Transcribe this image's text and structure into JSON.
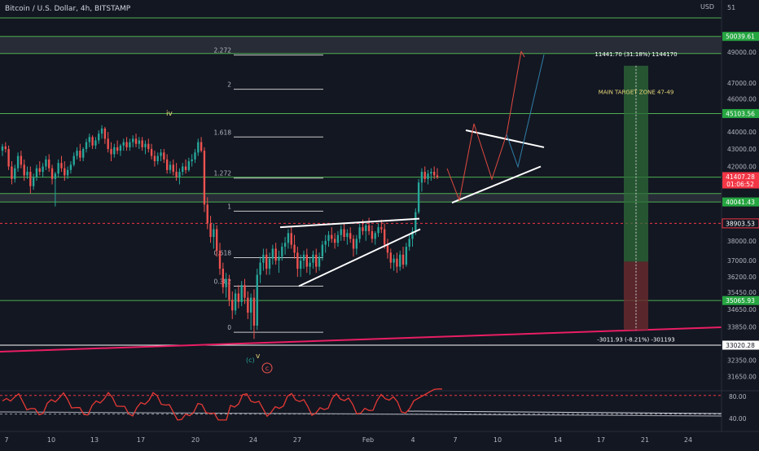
{
  "symbol": {
    "title": "Bitcoin / U.S. Dollar, 4h, BITSTAMP",
    "currency": "USD",
    "price_ticker_top": "51"
  },
  "colors": {
    "background": "#131722",
    "up": "#26a69a",
    "down": "#ef5350",
    "level_line": "#4caf50",
    "target_zone_top": "#2e6b38",
    "target_zone_bottom": "#6b2a2e",
    "trendline": "#e91e63",
    "wedge": "#ffffff",
    "projection_up": "#e04a3f",
    "projection_alt": "#2f7fa8",
    "rsi": "#e53935",
    "neutral_text": "#b2b5be"
  },
  "chart_data": {
    "type": "candlestick",
    "title": "Bitcoin / U.S. Dollar, 4h, BITSTAMP",
    "y_axis": {
      "scale": "log",
      "range": [
        31100,
        52500
      ],
      "ticks": [
        31650,
        32350,
        33020.28,
        33850,
        34650,
        35450,
        36200,
        37000,
        38000,
        39000,
        40000,
        41000,
        42000,
        43000,
        44000,
        45000,
        46000,
        47000,
        49000
      ]
    },
    "x_axis": {
      "ticks": [
        "7",
        "10",
        "13",
        "17",
        "20",
        "24",
        "27",
        "Feb",
        "4",
        "7",
        "10",
        "14",
        "17",
        "21",
        "24"
      ]
    },
    "price_tags": [
      {
        "price": "50039.61",
        "style": "green"
      },
      {
        "price": "45103.56",
        "style": "green"
      },
      {
        "price": "41407.28",
        "countdown": "01:06:52",
        "style": "red"
      },
      {
        "price": "40041.43",
        "style": "green"
      },
      {
        "price": "38903.53",
        "style": "red-outline"
      },
      {
        "price": "35065.93",
        "style": "green"
      },
      {
        "price": "33020.28",
        "style": "white"
      }
    ],
    "horizontal_levels": [
      51300,
      50039.61,
      48900,
      45103.56,
      41400,
      40500,
      40041.43,
      35065.93
    ],
    "zones": [
      {
        "from": 48900,
        "to": 50039.61
      },
      {
        "from": 40041.43,
        "to": 40500
      }
    ],
    "fibonacci": {
      "levels": [
        {
          "label": "2.272",
          "price": 48800
        },
        {
          "label": "2",
          "price": 46600
        },
        {
          "label": "1.618",
          "price": 43700
        },
        {
          "label": "1.272",
          "price": 41350
        },
        {
          "label": "1",
          "price": 39550
        },
        {
          "label": "0.618",
          "price": 37150
        },
        {
          "label": "0.382",
          "price": 35750
        },
        {
          "label": "0",
          "price": 33600
        }
      ]
    },
    "wave_labels": [
      {
        "text": "iv",
        "style": "plain"
      },
      {
        "text": "v",
        "style": "plain"
      },
      {
        "text": "(c)",
        "style": "paren"
      },
      {
        "text": "c",
        "style": "circled"
      }
    ],
    "target_box": {
      "entry": 36950,
      "target": 48100,
      "stop": 33700,
      "top_label": "11441.70 (31.18%) 1144170",
      "bottom_label": "-3011.93 (-8.21%) -301193",
      "zone_label": "MAIN TARGET ZONE 47-49"
    },
    "rsi": {
      "levels": [
        80,
        70,
        40
      ],
      "tick_labels": [
        "80.00",
        "40.00"
      ]
    },
    "candles": [
      [
        42900,
        43300,
        42600,
        43150
      ],
      [
        43150,
        43400,
        42800,
        43000
      ],
      [
        43000,
        43200,
        41800,
        42000
      ],
      [
        42000,
        42300,
        41000,
        41300
      ],
      [
        41300,
        42100,
        41100,
        41900
      ],
      [
        41900,
        42800,
        41700,
        42600
      ],
      [
        42600,
        42900,
        41900,
        42100
      ],
      [
        42100,
        42400,
        41200,
        41500
      ],
      [
        41500,
        42000,
        41300,
        41700
      ],
      [
        41700,
        42000,
        40500,
        40900
      ],
      [
        40900,
        41600,
        40700,
        41400
      ],
      [
        41400,
        42100,
        41200,
        41900
      ],
      [
        41900,
        42300,
        41500,
        41700
      ],
      [
        41700,
        42200,
        41400,
        42000
      ],
      [
        42000,
        42600,
        41800,
        42400
      ],
      [
        42400,
        42700,
        41700,
        41900
      ],
      [
        41900,
        42100,
        41000,
        41300
      ],
      [
        41300,
        41700,
        39800,
        41600
      ],
      [
        41600,
        42400,
        41400,
        42200
      ],
      [
        42200,
        42600,
        41700,
        41900
      ],
      [
        41900,
        42300,
        41200,
        41500
      ],
      [
        41500,
        42000,
        41300,
        41800
      ],
      [
        41800,
        42300,
        41600,
        42100
      ],
      [
        42100,
        42800,
        42000,
        42600
      ],
      [
        42600,
        43100,
        42400,
        42900
      ],
      [
        42900,
        43300,
        42300,
        42500
      ],
      [
        42500,
        43100,
        42300,
        43000
      ],
      [
        43000,
        43600,
        42800,
        43400
      ],
      [
        43400,
        43900,
        43100,
        43700
      ],
      [
        43700,
        43800,
        43000,
        43200
      ],
      [
        43200,
        43700,
        43000,
        43500
      ],
      [
        43500,
        44100,
        43300,
        43900
      ],
      [
        43900,
        44400,
        43600,
        44200
      ],
      [
        44200,
        44300,
        43300,
        43600
      ],
      [
        43600,
        44000,
        42800,
        43000
      ],
      [
        43000,
        43400,
        42300,
        42700
      ],
      [
        42700,
        43300,
        42500,
        43100
      ],
      [
        43100,
        43500,
        42700,
        42900
      ],
      [
        42900,
        43300,
        42600,
        43200
      ],
      [
        43200,
        43600,
        42900,
        43400
      ],
      [
        43400,
        43700,
        42900,
        43100
      ],
      [
        43100,
        43600,
        42900,
        43400
      ],
      [
        43400,
        43800,
        43100,
        43600
      ],
      [
        43600,
        43900,
        43100,
        43300
      ],
      [
        43300,
        43700,
        43000,
        43500
      ],
      [
        43500,
        43700,
        42900,
        43100
      ],
      [
        43100,
        43500,
        42700,
        43300
      ],
      [
        43300,
        43600,
        42800,
        43000
      ],
      [
        43000,
        43300,
        42400,
        42600
      ],
      [
        42600,
        42900,
        42000,
        42300
      ],
      [
        42300,
        42800,
        42100,
        42600
      ],
      [
        42600,
        43000,
        42300,
        42800
      ],
      [
        42800,
        43000,
        42200,
        42400
      ],
      [
        42400,
        42700,
        41600,
        41800
      ],
      [
        41800,
        42300,
        41600,
        42100
      ],
      [
        42100,
        42400,
        41500,
        41700
      ],
      [
        41700,
        42200,
        41200,
        41400
      ],
      [
        41400,
        41900,
        41000,
        41700
      ],
      [
        41700,
        42200,
        41500,
        42000
      ],
      [
        42000,
        42400,
        41600,
        41800
      ],
      [
        41800,
        42500,
        41700,
        42300
      ],
      [
        42300,
        42700,
        42000,
        42400
      ],
      [
        42400,
        43000,
        42200,
        42800
      ],
      [
        42800,
        43600,
        42600,
        43400
      ],
      [
        43400,
        43700,
        42800,
        42900
      ],
      [
        42900,
        43100,
        39500,
        39900
      ],
      [
        39900,
        40300,
        38600,
        38900
      ],
      [
        38900,
        39300,
        37900,
        38200
      ],
      [
        38200,
        38900,
        37600,
        38600
      ],
      [
        38600,
        38800,
        37200,
        37500
      ],
      [
        37500,
        37900,
        36300,
        36600
      ],
      [
        36600,
        36900,
        35400,
        35700
      ],
      [
        35700,
        36400,
        35200,
        36100
      ],
      [
        36100,
        36300,
        34800,
        35100
      ],
      [
        35100,
        35500,
        34200,
        34600
      ],
      [
        34600,
        35600,
        34400,
        35400
      ],
      [
        35400,
        35800,
        34700,
        35000
      ],
      [
        35000,
        36000,
        34800,
        35800
      ],
      [
        35800,
        36100,
        34900,
        35200
      ],
      [
        35200,
        35500,
        34200,
        34500
      ],
      [
        34500,
        35400,
        33700,
        35200
      ],
      [
        35200,
        35600,
        33300,
        33900
      ],
      [
        33900,
        36600,
        33700,
        36300
      ],
      [
        36300,
        37200,
        35900,
        36900
      ],
      [
        36900,
        37600,
        36500,
        37300
      ],
      [
        37300,
        37600,
        36300,
        36600
      ],
      [
        36600,
        37400,
        36300,
        37100
      ],
      [
        37100,
        37800,
        36800,
        37600
      ],
      [
        37600,
        37900,
        36800,
        37000
      ],
      [
        37000,
        37500,
        36400,
        37200
      ],
      [
        37200,
        37900,
        37000,
        37700
      ],
      [
        37700,
        38200,
        37300,
        37900
      ],
      [
        37900,
        38600,
        37600,
        38400
      ],
      [
        38400,
        38700,
        37600,
        37800
      ],
      [
        37800,
        38300,
        37100,
        37400
      ],
      [
        37400,
        37700,
        36200,
        36600
      ],
      [
        36600,
        37300,
        36200,
        37000
      ],
      [
        37000,
        37500,
        36600,
        37300
      ],
      [
        37300,
        37600,
        36400,
        36700
      ],
      [
        36700,
        37200,
        36300,
        36900
      ],
      [
        36900,
        37500,
        36600,
        37300
      ],
      [
        37300,
        37600,
        36400,
        36700
      ],
      [
        36700,
        37400,
        36500,
        37200
      ],
      [
        37200,
        38000,
        37000,
        37800
      ],
      [
        37800,
        38300,
        37400,
        38000
      ],
      [
        38000,
        38500,
        37700,
        38300
      ],
      [
        38300,
        38700,
        37900,
        38100
      ],
      [
        38100,
        38400,
        37600,
        37900
      ],
      [
        37900,
        38500,
        37700,
        38300
      ],
      [
        38300,
        38800,
        38000,
        38600
      ],
      [
        38600,
        38900,
        38000,
        38200
      ],
      [
        38200,
        38600,
        37800,
        38400
      ],
      [
        38400,
        38700,
        37900,
        38100
      ],
      [
        38100,
        38300,
        37200,
        37600
      ],
      [
        37600,
        38300,
        37300,
        38100
      ],
      [
        38100,
        38900,
        37900,
        38700
      ],
      [
        38700,
        39100,
        38300,
        38500
      ],
      [
        38500,
        38900,
        38000,
        38800
      ],
      [
        38800,
        39200,
        38300,
        38500
      ],
      [
        38500,
        38800,
        37900,
        38100
      ],
      [
        38100,
        38500,
        37800,
        38400
      ],
      [
        38400,
        38900,
        38200,
        38700
      ],
      [
        38700,
        39100,
        38400,
        38600
      ],
      [
        38600,
        38900,
        37600,
        37800
      ],
      [
        37800,
        38100,
        37100,
        37400
      ],
      [
        37400,
        37600,
        36600,
        36900
      ],
      [
        36900,
        37300,
        36500,
        37100
      ],
      [
        37100,
        37400,
        36400,
        36700
      ],
      [
        36700,
        37500,
        36500,
        37300
      ],
      [
        37300,
        37700,
        36600,
        36800
      ],
      [
        36800,
        37900,
        36700,
        37700
      ],
      [
        37700,
        38300,
        37500,
        38100
      ],
      [
        38100,
        38700,
        37700,
        38500
      ],
      [
        38500,
        39700,
        38300,
        39500
      ],
      [
        39500,
        41300,
        39400,
        41100
      ],
      [
        41100,
        41900,
        40600,
        41700
      ],
      [
        41700,
        42000,
        41100,
        41300
      ],
      [
        41300,
        41800,
        41000,
        41600
      ],
      [
        41600,
        41900,
        41200,
        41700
      ],
      [
        41700,
        42000,
        41300,
        41500
      ],
      [
        41500,
        41900,
        41300,
        41400
      ]
    ]
  }
}
